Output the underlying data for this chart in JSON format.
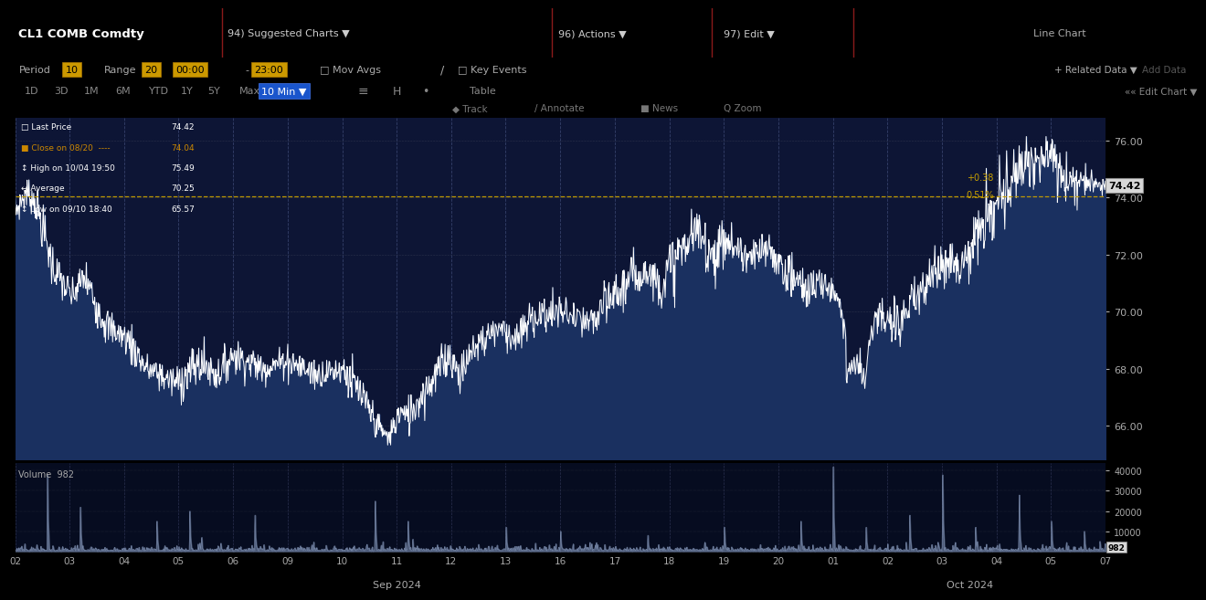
{
  "last_price": 74.42,
  "close_on_0820": 74.04,
  "high": 75.49,
  "average": 70.25,
  "low": 65.57,
  "change": "+0.38",
  "change_pct": "0.51%",
  "price_ylim": [
    64.8,
    76.8
  ],
  "price_yticks": [
    66.0,
    68.0,
    70.0,
    72.0,
    74.0,
    76.0
  ],
  "volume_ylim": [
    0,
    44000
  ],
  "volume_yticks": [
    10000,
    20000,
    30000,
    40000
  ],
  "chart_bg": "#0d1535",
  "line_color": "#ffffff",
  "fill_color": "#1a3060",
  "avg_line_color": "#c8a000",
  "grid_color": "#3a4570",
  "tick_color": "#aaaaaa",
  "volume_fill_color": "#5a7090",
  "x_labels": [
    "02",
    "03",
    "04",
    "05",
    "06",
    "09",
    "10",
    "11",
    "12",
    "13",
    "16",
    "17",
    "18",
    "19",
    "20",
    "01",
    "02",
    "03",
    "04",
    "05",
    "07"
  ],
  "volume_label": "Volume  982"
}
